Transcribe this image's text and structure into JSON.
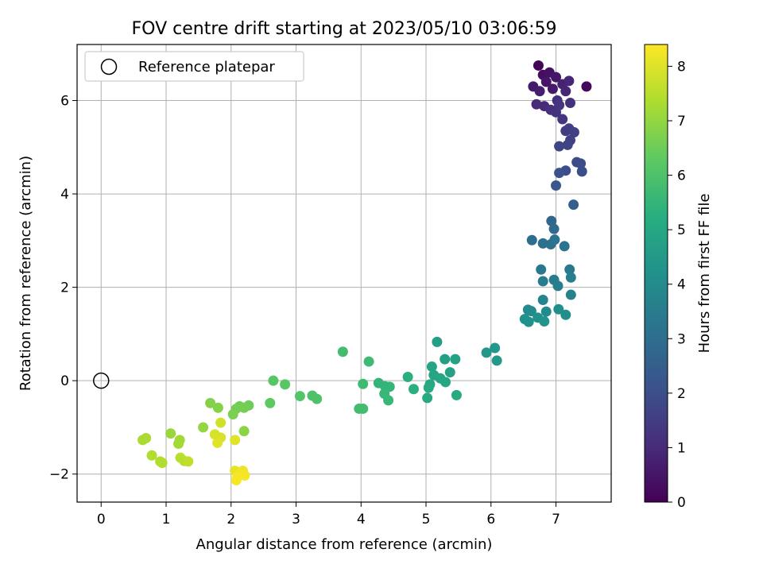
{
  "chart_data": {
    "type": "scatter",
    "title": "FOV centre drift starting at 2023/05/10 03:06:59",
    "xlabel": "Angular distance from reference (arcmin)",
    "ylabel": "Rotation from reference (arcmin)",
    "xlim": [
      -0.37,
      7.85
    ],
    "ylim": [
      -2.6,
      7.2
    ],
    "x_ticks": [
      0,
      1,
      2,
      3,
      4,
      5,
      6,
      7
    ],
    "y_ticks": [
      -2,
      0,
      2,
      4,
      6
    ],
    "grid": true,
    "legend": {
      "position": "top-left",
      "entries": [
        "Reference platepar"
      ]
    },
    "reference_point": {
      "name": "Reference platepar",
      "x": 0,
      "y": 0
    },
    "colorbar": {
      "label": "Hours from first FF file",
      "range": [
        0,
        8.4
      ],
      "ticks": [
        0,
        1,
        2,
        3,
        4,
        5,
        6,
        7,
        8
      ],
      "colormap": "viridis"
    },
    "points": [
      {
        "x": 6.73,
        "y": 6.75,
        "c": 0.1
      },
      {
        "x": 7.47,
        "y": 6.3,
        "c": 0.2
      },
      {
        "x": 6.8,
        "y": 6.55,
        "c": 0.3
      },
      {
        "x": 6.9,
        "y": 6.6,
        "c": 0.4
      },
      {
        "x": 6.85,
        "y": 6.4,
        "c": 0.5
      },
      {
        "x": 7.0,
        "y": 6.5,
        "c": 0.5
      },
      {
        "x": 6.65,
        "y": 6.3,
        "c": 0.6
      },
      {
        "x": 6.75,
        "y": 6.2,
        "c": 0.7
      },
      {
        "x": 6.95,
        "y": 6.25,
        "c": 0.6
      },
      {
        "x": 7.1,
        "y": 6.35,
        "c": 0.8
      },
      {
        "x": 7.2,
        "y": 6.42,
        "c": 0.9
      },
      {
        "x": 7.15,
        "y": 6.2,
        "c": 0.9
      },
      {
        "x": 6.7,
        "y": 5.92,
        "c": 1.0
      },
      {
        "x": 6.82,
        "y": 5.88,
        "c": 1.0
      },
      {
        "x": 6.92,
        "y": 5.8,
        "c": 1.1
      },
      {
        "x": 7.02,
        "y": 6.0,
        "c": 1.1
      },
      {
        "x": 7.22,
        "y": 5.95,
        "c": 1.2
      },
      {
        "x": 7.0,
        "y": 5.75,
        "c": 1.2
      },
      {
        "x": 7.1,
        "y": 5.6,
        "c": 1.3
      },
      {
        "x": 7.05,
        "y": 5.9,
        "c": 1.3
      },
      {
        "x": 7.15,
        "y": 5.35,
        "c": 1.5
      },
      {
        "x": 7.2,
        "y": 5.4,
        "c": 1.5
      },
      {
        "x": 7.28,
        "y": 5.32,
        "c": 1.6
      },
      {
        "x": 7.22,
        "y": 5.15,
        "c": 1.6
      },
      {
        "x": 7.05,
        "y": 5.02,
        "c": 1.7
      },
      {
        "x": 7.18,
        "y": 5.05,
        "c": 1.7
      },
      {
        "x": 7.32,
        "y": 4.68,
        "c": 1.9
      },
      {
        "x": 7.38,
        "y": 4.65,
        "c": 1.9
      },
      {
        "x": 7.4,
        "y": 4.48,
        "c": 2.0
      },
      {
        "x": 7.15,
        "y": 4.5,
        "c": 2.0
      },
      {
        "x": 7.05,
        "y": 4.45,
        "c": 2.1
      },
      {
        "x": 7.0,
        "y": 4.18,
        "c": 2.3
      },
      {
        "x": 7.27,
        "y": 3.77,
        "c": 2.5
      },
      {
        "x": 6.93,
        "y": 3.42,
        "c": 2.8
      },
      {
        "x": 6.97,
        "y": 3.25,
        "c": 2.9
      },
      {
        "x": 6.63,
        "y": 3.01,
        "c": 3.0
      },
      {
        "x": 6.8,
        "y": 2.94,
        "c": 3.1
      },
      {
        "x": 6.92,
        "y": 2.92,
        "c": 3.1
      },
      {
        "x": 6.98,
        "y": 3.02,
        "c": 3.2
      },
      {
        "x": 7.13,
        "y": 2.88,
        "c": 3.2
      },
      {
        "x": 6.77,
        "y": 2.38,
        "c": 3.4
      },
      {
        "x": 7.21,
        "y": 2.38,
        "c": 3.4
      },
      {
        "x": 6.8,
        "y": 2.13,
        "c": 3.5
      },
      {
        "x": 6.97,
        "y": 2.16,
        "c": 3.5
      },
      {
        "x": 7.03,
        "y": 2.03,
        "c": 3.6
      },
      {
        "x": 7.23,
        "y": 2.21,
        "c": 3.6
      },
      {
        "x": 7.23,
        "y": 1.84,
        "c": 3.7
      },
      {
        "x": 6.8,
        "y": 1.73,
        "c": 3.8
      },
      {
        "x": 6.57,
        "y": 1.52,
        "c": 4.0
      },
      {
        "x": 6.62,
        "y": 1.49,
        "c": 4.0
      },
      {
        "x": 6.85,
        "y": 1.48,
        "c": 4.0
      },
      {
        "x": 7.04,
        "y": 1.53,
        "c": 4.1
      },
      {
        "x": 7.15,
        "y": 1.41,
        "c": 4.1
      },
      {
        "x": 6.52,
        "y": 1.32,
        "c": 4.2
      },
      {
        "x": 6.58,
        "y": 1.26,
        "c": 4.2
      },
      {
        "x": 6.72,
        "y": 1.35,
        "c": 4.2
      },
      {
        "x": 6.82,
        "y": 1.27,
        "c": 4.3
      },
      {
        "x": 5.93,
        "y": 0.6,
        "c": 4.4
      },
      {
        "x": 6.06,
        "y": 0.7,
        "c": 4.4
      },
      {
        "x": 6.09,
        "y": 0.43,
        "c": 4.5
      },
      {
        "x": 5.17,
        "y": 0.83,
        "c": 4.7
      },
      {
        "x": 5.29,
        "y": 0.46,
        "c": 4.7
      },
      {
        "x": 5.45,
        "y": 0.46,
        "c": 4.8
      },
      {
        "x": 5.37,
        "y": 0.18,
        "c": 4.8
      },
      {
        "x": 5.09,
        "y": 0.3,
        "c": 4.9
      },
      {
        "x": 5.12,
        "y": 0.12,
        "c": 4.9
      },
      {
        "x": 5.22,
        "y": 0.05,
        "c": 5.0
      },
      {
        "x": 5.06,
        "y": -0.08,
        "c": 5.0
      },
      {
        "x": 5.3,
        "y": -0.03,
        "c": 5.0
      },
      {
        "x": 5.04,
        "y": -0.15,
        "c": 5.1
      },
      {
        "x": 5.02,
        "y": -0.37,
        "c": 5.1
      },
      {
        "x": 5.47,
        "y": -0.31,
        "c": 5.1
      },
      {
        "x": 4.72,
        "y": 0.08,
        "c": 5.3
      },
      {
        "x": 4.81,
        "y": -0.18,
        "c": 5.3
      },
      {
        "x": 4.27,
        "y": -0.05,
        "c": 5.5
      },
      {
        "x": 4.37,
        "y": -0.12,
        "c": 5.5
      },
      {
        "x": 4.44,
        "y": -0.13,
        "c": 5.5
      },
      {
        "x": 4.36,
        "y": -0.28,
        "c": 5.6
      },
      {
        "x": 4.42,
        "y": -0.42,
        "c": 5.6
      },
      {
        "x": 4.12,
        "y": 0.41,
        "c": 5.7
      },
      {
        "x": 4.03,
        "y": -0.07,
        "c": 5.7
      },
      {
        "x": 3.97,
        "y": -0.6,
        "c": 5.8
      },
      {
        "x": 4.03,
        "y": -0.6,
        "c": 5.8
      },
      {
        "x": 3.72,
        "y": 0.62,
        "c": 5.8
      },
      {
        "x": 3.25,
        "y": -0.32,
        "c": 6.0
      },
      {
        "x": 3.32,
        "y": -0.39,
        "c": 6.0
      },
      {
        "x": 3.06,
        "y": -0.33,
        "c": 6.1
      },
      {
        "x": 2.83,
        "y": -0.08,
        "c": 6.2
      },
      {
        "x": 2.65,
        "y": 0.0,
        "c": 6.2
      },
      {
        "x": 2.6,
        "y": -0.48,
        "c": 6.3
      },
      {
        "x": 2.27,
        "y": -0.53,
        "c": 6.5
      },
      {
        "x": 2.13,
        "y": -0.55,
        "c": 6.5
      },
      {
        "x": 2.08,
        "y": -0.6,
        "c": 6.6
      },
      {
        "x": 2.2,
        "y": -0.58,
        "c": 6.6
      },
      {
        "x": 2.03,
        "y": -0.72,
        "c": 6.7
      },
      {
        "x": 1.68,
        "y": -0.48,
        "c": 6.8
      },
      {
        "x": 1.8,
        "y": -0.58,
        "c": 6.8
      },
      {
        "x": 2.2,
        "y": -1.08,
        "c": 6.9
      },
      {
        "x": 1.57,
        "y": -1.0,
        "c": 7.0
      },
      {
        "x": 1.07,
        "y": -1.13,
        "c": 7.1
      },
      {
        "x": 1.21,
        "y": -1.27,
        "c": 7.2
      },
      {
        "x": 1.19,
        "y": -1.35,
        "c": 7.2
      },
      {
        "x": 0.69,
        "y": -1.23,
        "c": 7.3
      },
      {
        "x": 0.64,
        "y": -1.27,
        "c": 7.3
      },
      {
        "x": 0.78,
        "y": -1.6,
        "c": 7.4
      },
      {
        "x": 0.91,
        "y": -1.73,
        "c": 7.4
      },
      {
        "x": 0.94,
        "y": -1.76,
        "c": 7.4
      },
      {
        "x": 1.22,
        "y": -1.65,
        "c": 7.5
      },
      {
        "x": 1.28,
        "y": -1.72,
        "c": 7.5
      },
      {
        "x": 1.34,
        "y": -1.73,
        "c": 7.6
      },
      {
        "x": 1.84,
        "y": -0.9,
        "c": 7.8
      },
      {
        "x": 1.75,
        "y": -1.15,
        "c": 7.9
      },
      {
        "x": 1.84,
        "y": -1.22,
        "c": 7.9
      },
      {
        "x": 1.79,
        "y": -1.33,
        "c": 8.0
      },
      {
        "x": 2.06,
        "y": -1.27,
        "c": 8.0
      },
      {
        "x": 2.06,
        "y": -1.93,
        "c": 8.1
      },
      {
        "x": 2.15,
        "y": -1.98,
        "c": 8.2
      },
      {
        "x": 2.18,
        "y": -1.93,
        "c": 8.2
      },
      {
        "x": 2.21,
        "y": -2.03,
        "c": 8.3
      },
      {
        "x": 2.08,
        "y": -2.13,
        "c": 8.3
      },
      {
        "x": 2.1,
        "y": -2.05,
        "c": 8.3
      }
    ]
  }
}
